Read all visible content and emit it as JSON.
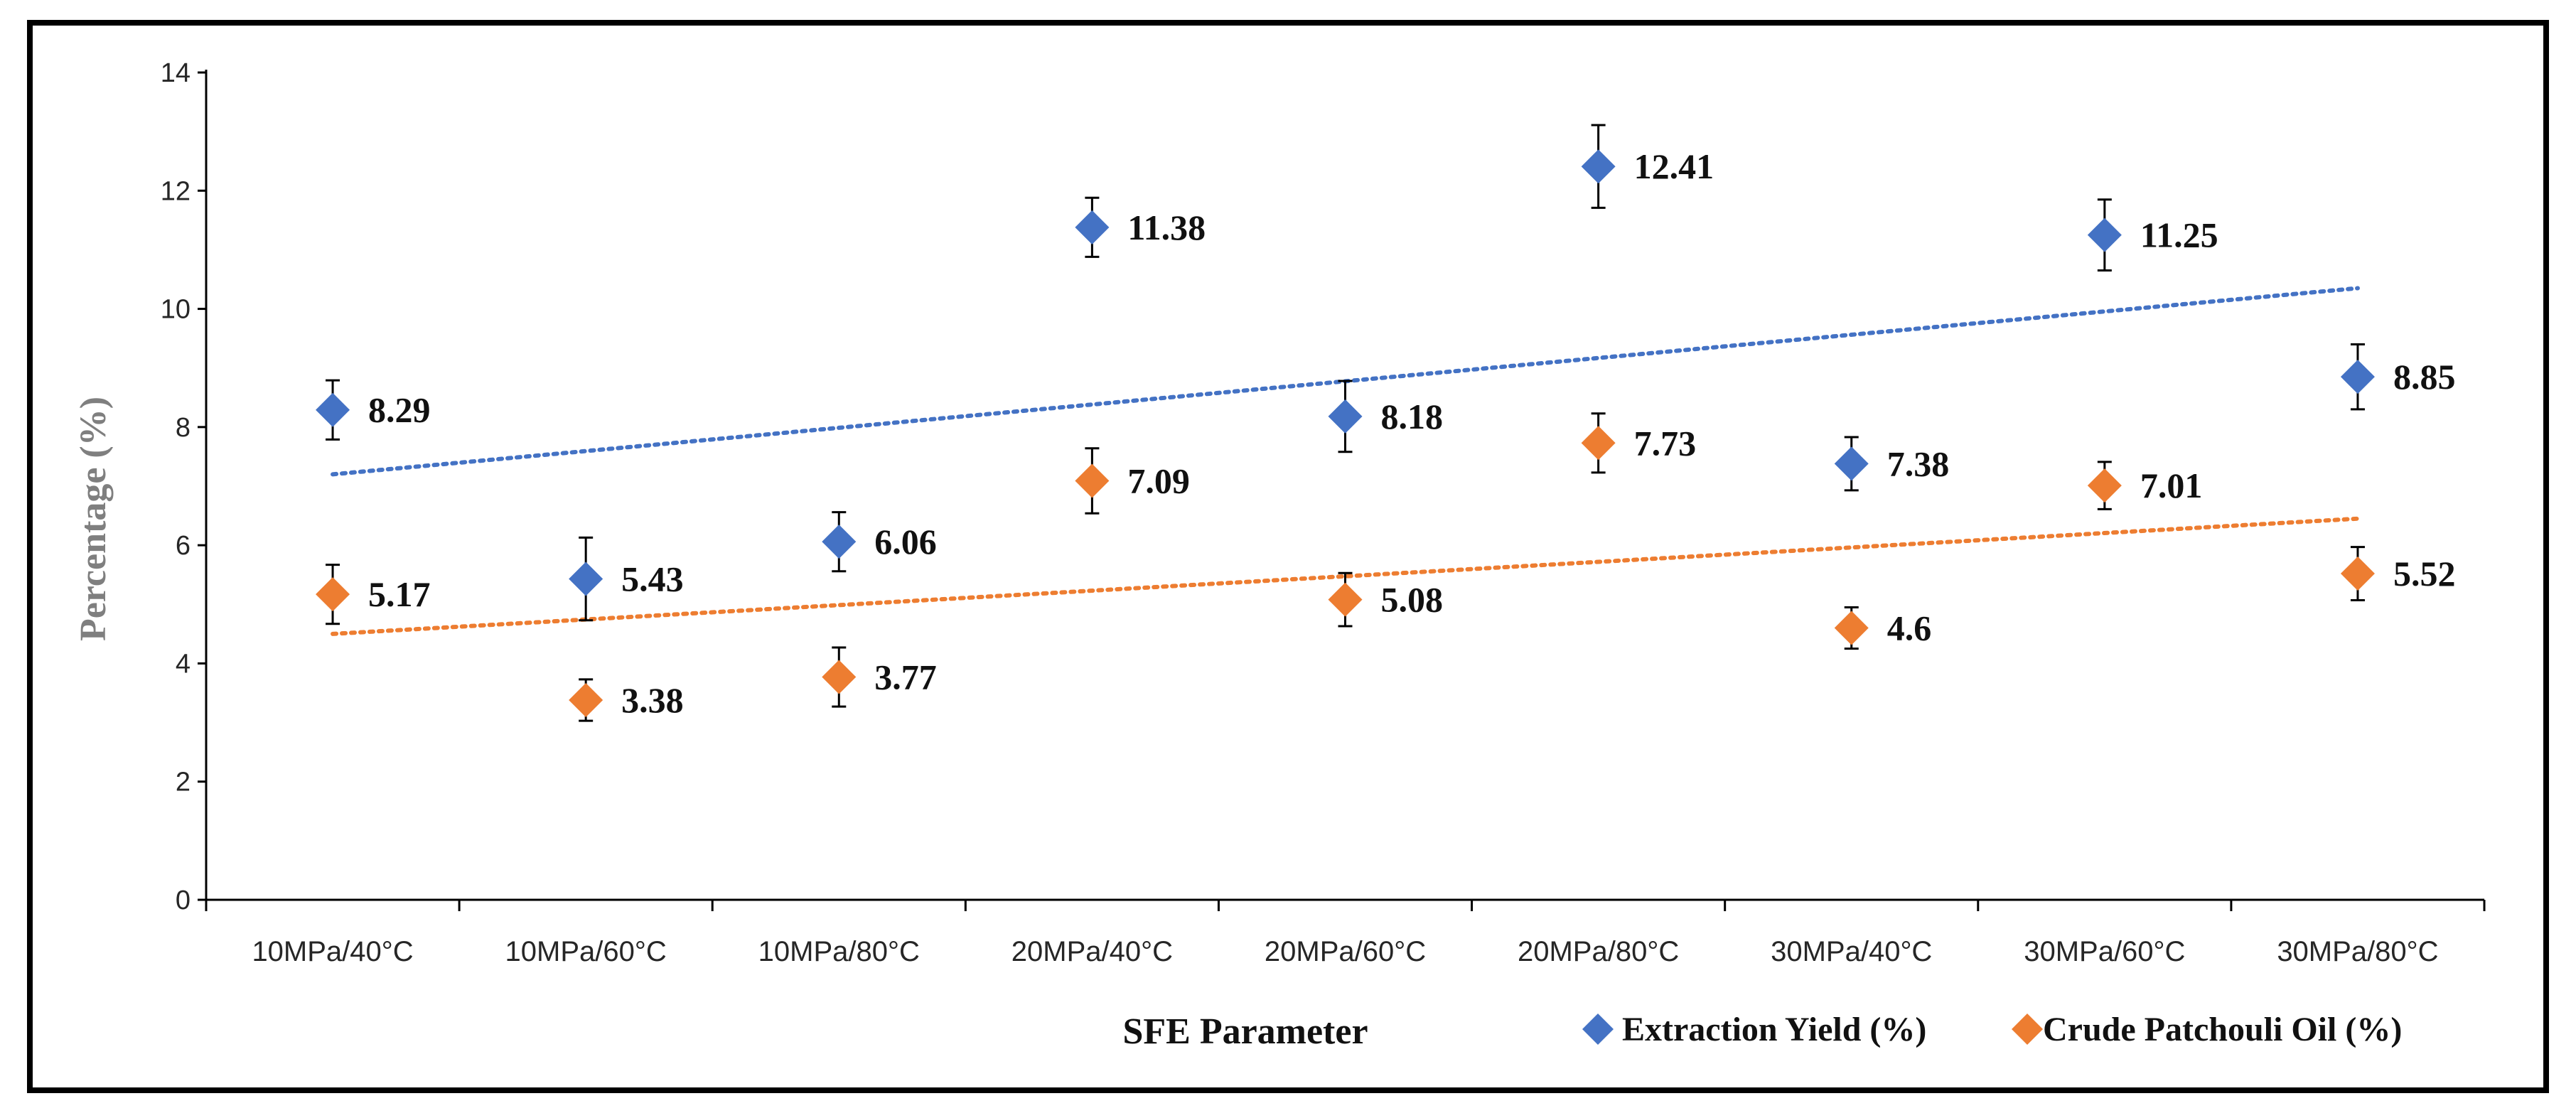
{
  "chart_data": {
    "type": "scatter",
    "title": "",
    "xlabel": "SFE Parameter",
    "ylabel": "Percentage (%)",
    "ylim": [
      0,
      14
    ],
    "yticks": [
      0,
      2,
      4,
      6,
      8,
      10,
      12,
      14
    ],
    "grid": false,
    "legend_position": "bottom-right",
    "categories": [
      "10MPa/40°C",
      "10MPa/60°C",
      "10MPa/80°C",
      "20MPa/40°C",
      "20MPa/60°C",
      "20MPa/80°C",
      "30MPa/40°C",
      "30MPa/60°C",
      "30MPa/80°C"
    ],
    "series": [
      {
        "name": "Extraction Yield (%)",
        "color": "#4472C4",
        "marker": "diamond",
        "values": [
          8.29,
          5.43,
          6.06,
          11.38,
          8.18,
          12.41,
          7.38,
          11.25,
          8.85
        ],
        "labels": [
          "8.29",
          "5.43",
          "6.06",
          "11.38",
          "8.18",
          "12.41",
          "7.38",
          "11.25",
          "8.85"
        ],
        "error": [
          0.5,
          0.7,
          0.5,
          0.5,
          0.6,
          0.7,
          0.45,
          0.6,
          0.55
        ],
        "trendline": {
          "style": "dotted",
          "start": 7.2,
          "end": 10.35
        }
      },
      {
        "name": "Crude Patchouli Oil (%)",
        "color": "#ED7D31",
        "marker": "diamond",
        "values": [
          5.17,
          3.38,
          3.77,
          7.09,
          5.08,
          7.73,
          4.6,
          7.01,
          5.52
        ],
        "labels": [
          "5.17",
          "3.38",
          "3.77",
          "7.09",
          "5.08",
          "7.73",
          "4.6",
          "7.01",
          "5.52"
        ],
        "error": [
          0.5,
          0.35,
          0.5,
          0.55,
          0.45,
          0.5,
          0.35,
          0.4,
          0.45
        ],
        "trendline": {
          "style": "dotted",
          "start": 4.5,
          "end": 6.45
        }
      }
    ]
  }
}
